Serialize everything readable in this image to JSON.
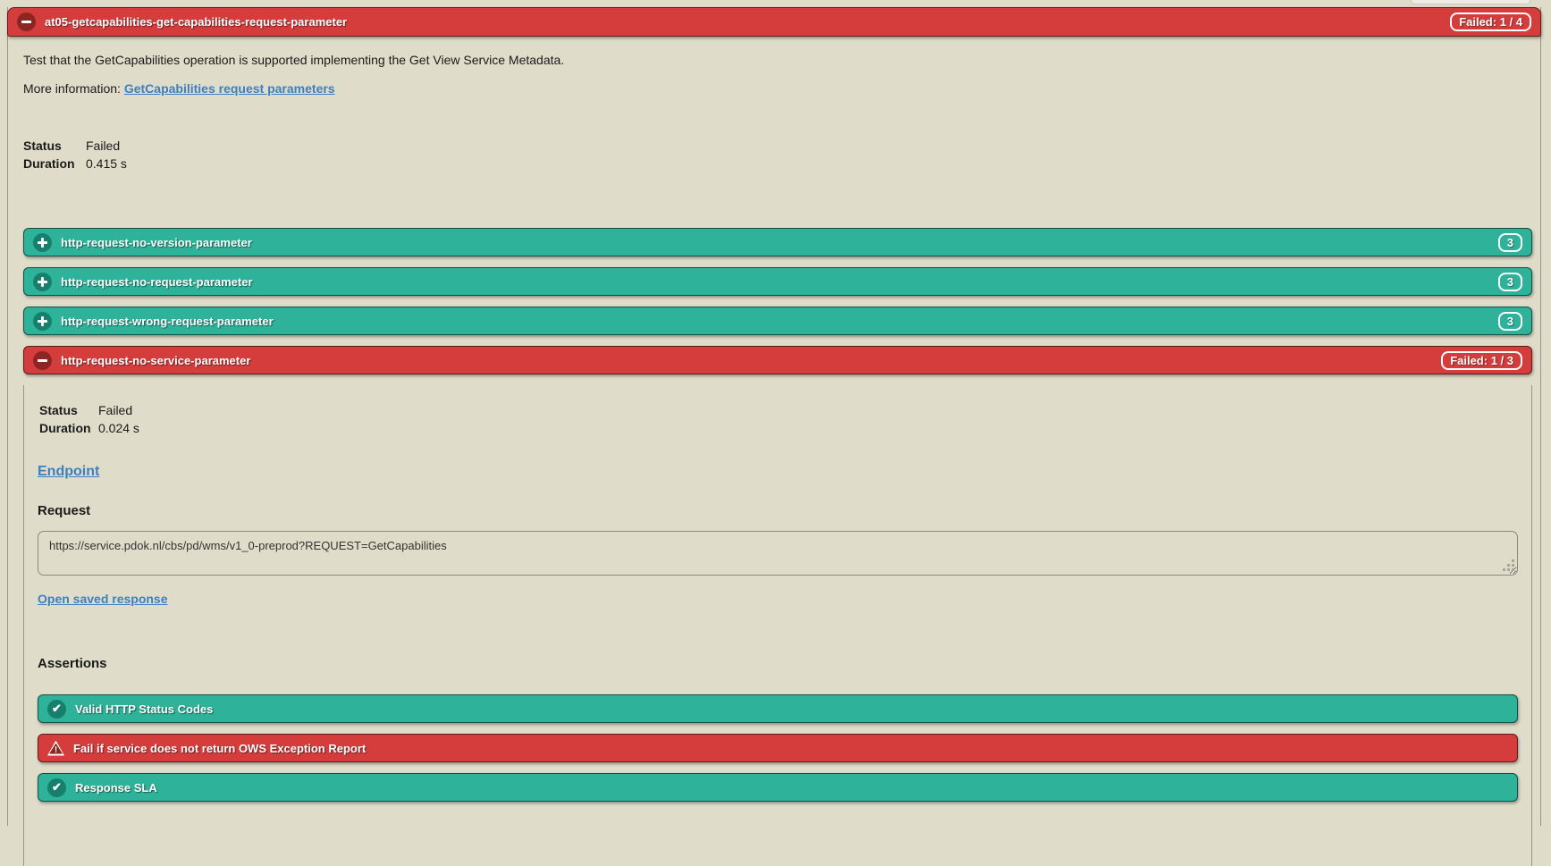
{
  "colors": {
    "background": "#dfddc9",
    "failed_red": "#d53c3c",
    "passed_green": "#2eb299",
    "link_blue": "#3e7ec2"
  },
  "header": {
    "title": "at05-getcapabilities-get-capabilities-request-parameter",
    "badge": "Failed: 1 / 4"
  },
  "summary": {
    "description": "Test that the GetCapabilities operation is supported implementing the Get View Service Metadata.",
    "more_information_label": "More information: ",
    "more_information_link": "GetCapabilities request parameters",
    "status_label": "Status",
    "status_value": "Failed",
    "duration_label": "Duration",
    "duration_value": "0.415 s"
  },
  "steps": [
    {
      "label": "http-request-no-version-parameter",
      "badge": "3",
      "result": "passed"
    },
    {
      "label": "http-request-no-request-parameter",
      "badge": "3",
      "result": "passed"
    },
    {
      "label": "http-request-wrong-request-parameter",
      "badge": "3",
      "result": "passed"
    },
    {
      "label": "http-request-no-service-parameter",
      "badge": "Failed: 1 / 3",
      "result": "failed"
    }
  ],
  "step_detail": {
    "status_label": "Status",
    "status_value": "Failed",
    "duration_label": "Duration",
    "duration_value": "0.024 s",
    "endpoint_link": "Endpoint",
    "request_heading": "Request",
    "request_url": "https://service.pdok.nl/cbs/pd/wms/v1_0-preprod?REQUEST=GetCapabilities",
    "open_saved_response_link": "Open saved response",
    "assertions_heading": "Assertions",
    "assertions": [
      {
        "label": "Valid HTTP Status Codes",
        "result": "passed"
      },
      {
        "label": "Fail if service does not return OWS Exception Report",
        "result": "failed"
      },
      {
        "label": "Response SLA",
        "result": "passed"
      }
    ]
  }
}
